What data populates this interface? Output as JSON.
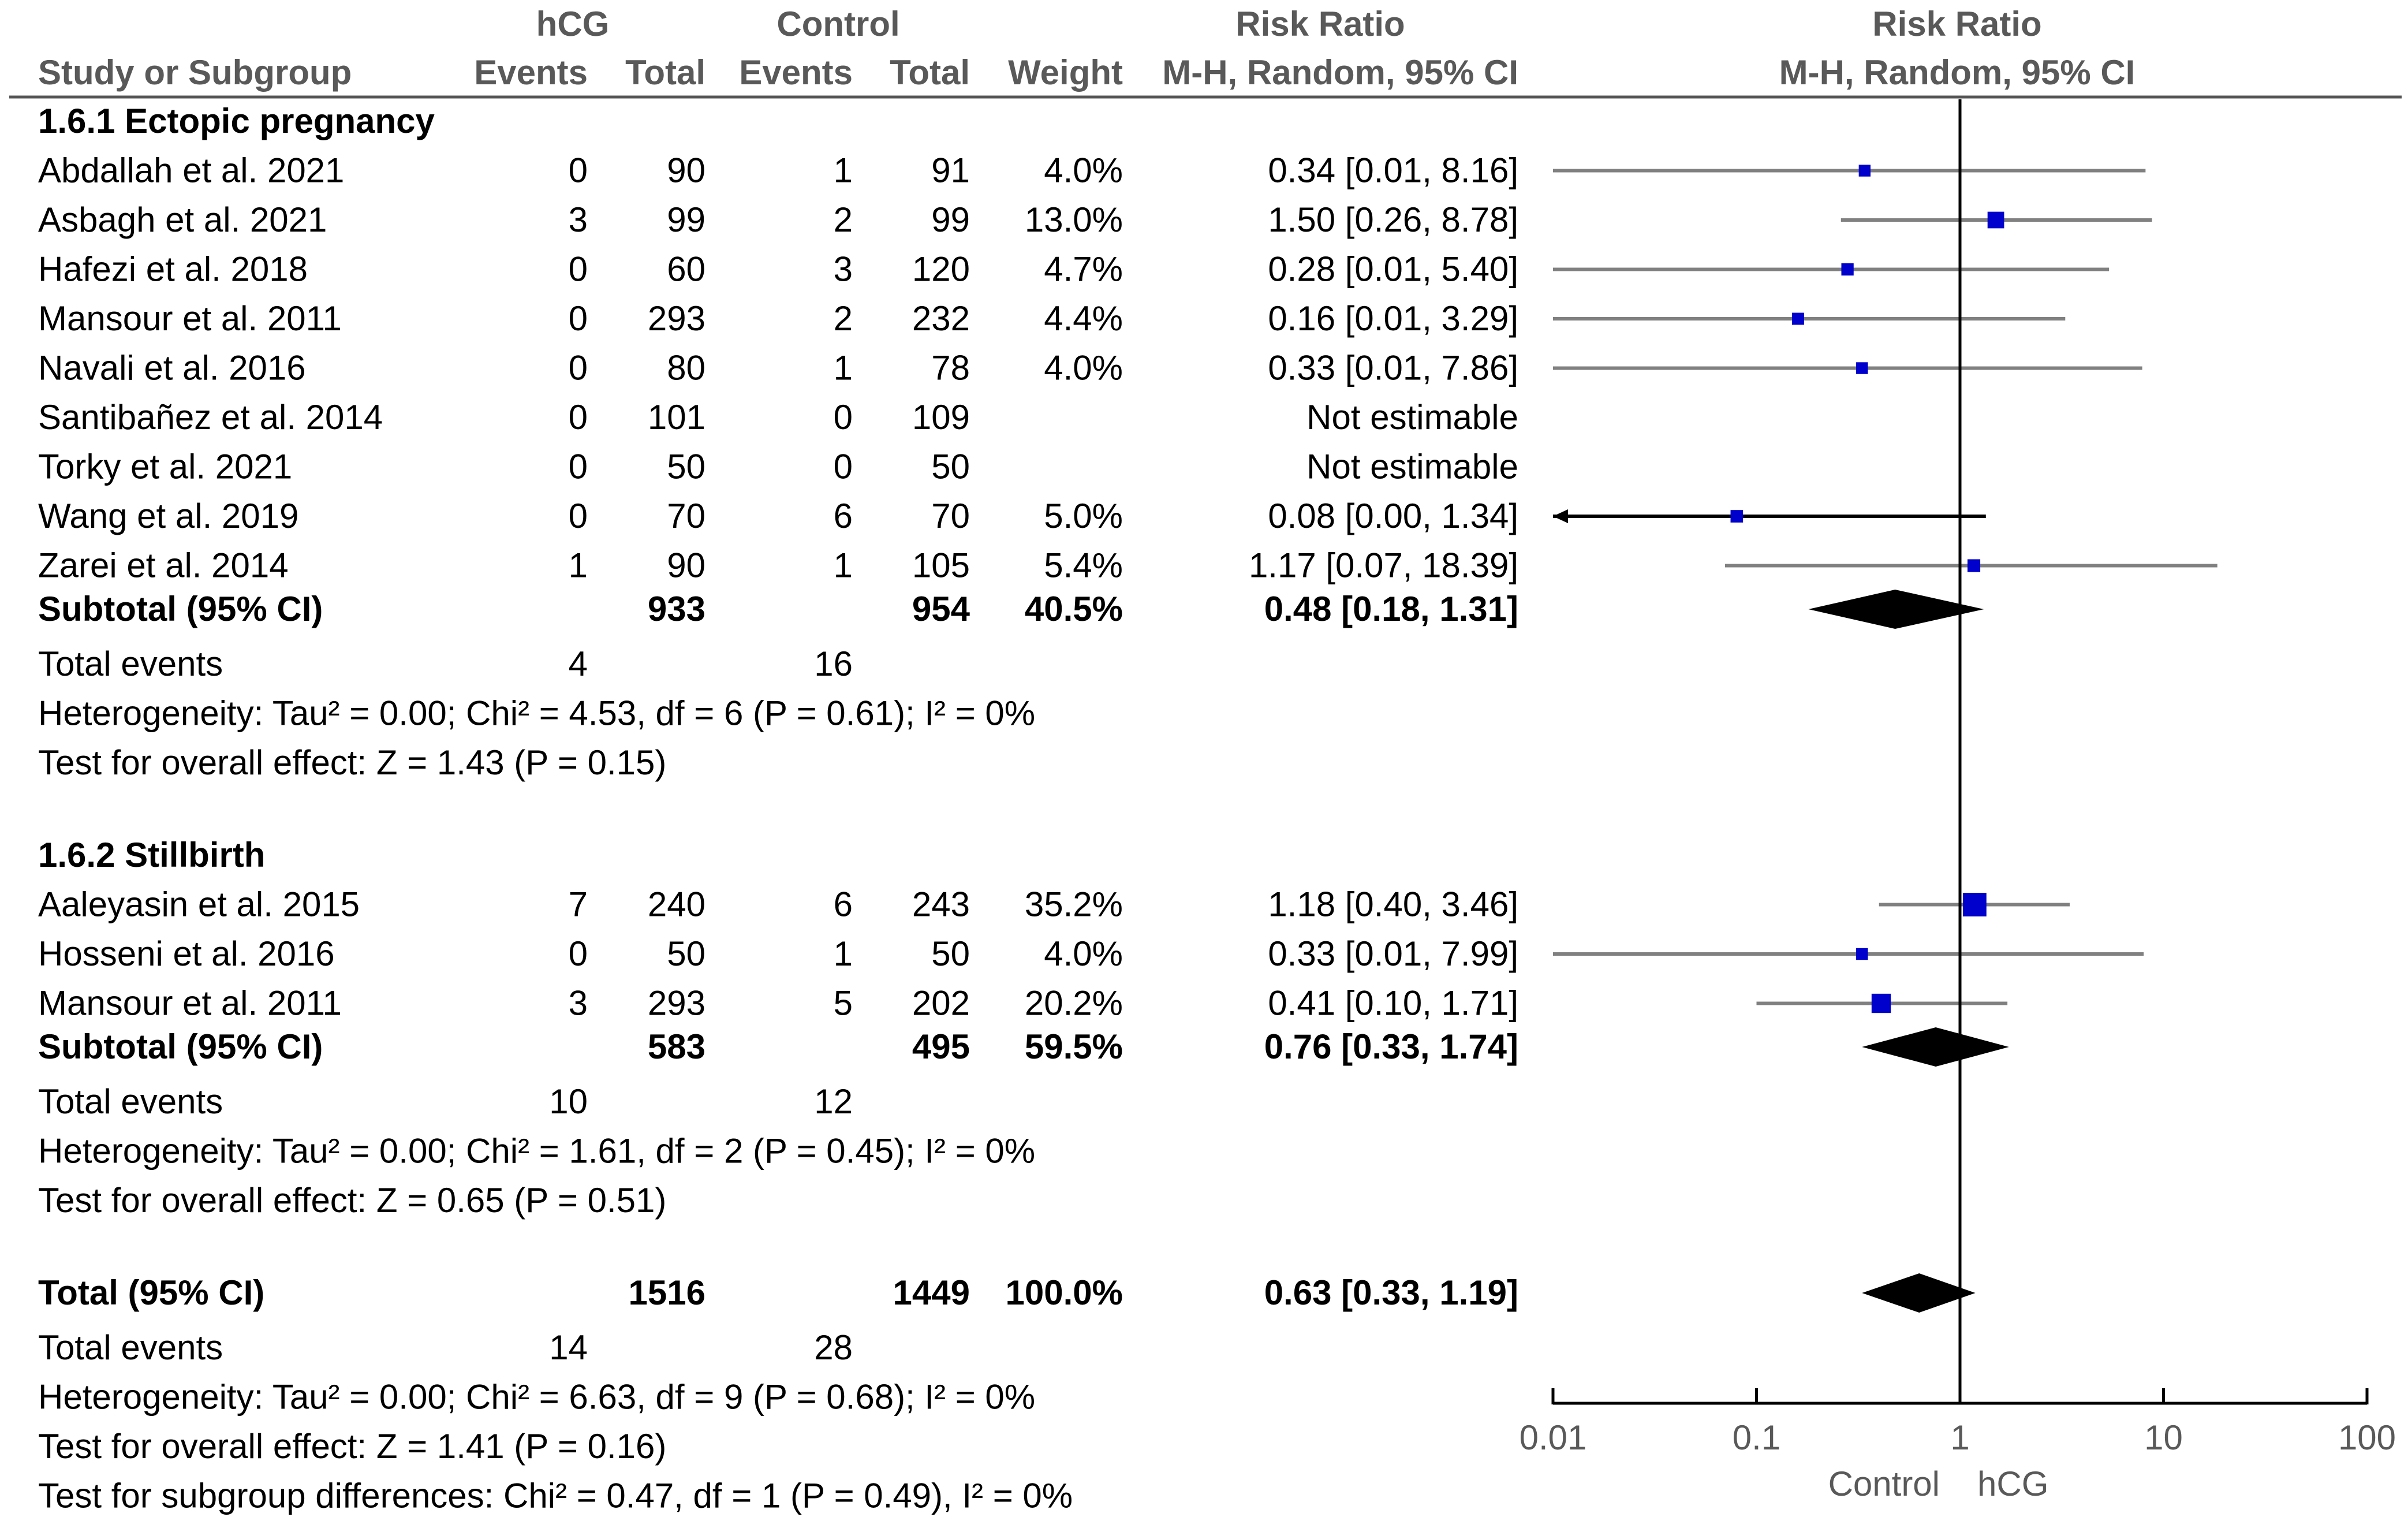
{
  "header": {
    "study_col": "Study or Subgroup",
    "exp_group": "hCG",
    "ctrl_group": "Control",
    "events": "Events",
    "total": "Total",
    "weight": "Weight",
    "rr_title": "Risk Ratio",
    "rr_method": "M-H, Random, 95% CI",
    "plot_title": "Risk Ratio",
    "plot_method": "M-H, Random, 95% CI"
  },
  "axis": {
    "ticks": [
      0.01,
      0.1,
      1,
      10,
      100
    ],
    "tick_labels": [
      "0.01",
      "0.1",
      "1",
      "10",
      "100"
    ],
    "left_label": "Control",
    "right_label": "hCG",
    "scale": "log",
    "range": [
      0.01,
      100
    ]
  },
  "colors": {
    "marker": "#0000cd",
    "ci_line": "#808080",
    "diamond": "#000000"
  },
  "chart_data": {
    "type": "forest",
    "scale": "log",
    "xlim": [
      0.01,
      100
    ],
    "subgroups": [
      {
        "title": "1.6.1 Ectopic pregnancy",
        "studies": [
          {
            "name": "Abdallah et al. 2021",
            "e_events": "0",
            "e_total": "90",
            "c_events": "1",
            "c_total": "91",
            "weight": "4.0%",
            "ci_text": "0.34 [0.01, 8.16]",
            "rr": 0.34,
            "lo": 0.01,
            "hi": 8.16,
            "w": 4.0
          },
          {
            "name": "Asbagh et al. 2021",
            "e_events": "3",
            "e_total": "99",
            "c_events": "2",
            "c_total": "99",
            "weight": "13.0%",
            "ci_text": "1.50 [0.26, 8.78]",
            "rr": 1.5,
            "lo": 0.26,
            "hi": 8.78,
            "w": 13.0
          },
          {
            "name": "Hafezi et al. 2018",
            "e_events": "0",
            "e_total": "60",
            "c_events": "3",
            "c_total": "120",
            "weight": "4.7%",
            "ci_text": "0.28 [0.01, 5.40]",
            "rr": 0.28,
            "lo": 0.01,
            "hi": 5.4,
            "w": 4.7
          },
          {
            "name": "Mansour et al. 2011",
            "e_events": "0",
            "e_total": "293",
            "c_events": "2",
            "c_total": "232",
            "weight": "4.4%",
            "ci_text": "0.16 [0.01, 3.29]",
            "rr": 0.16,
            "lo": 0.01,
            "hi": 3.29,
            "w": 4.4
          },
          {
            "name": "Navali et al. 2016",
            "e_events": "0",
            "e_total": "80",
            "c_events": "1",
            "c_total": "78",
            "weight": "4.0%",
            "ci_text": "0.33 [0.01, 7.86]",
            "rr": 0.33,
            "lo": 0.01,
            "hi": 7.86,
            "w": 4.0
          },
          {
            "name": "Santibañez et al. 2014",
            "e_events": "0",
            "e_total": "101",
            "c_events": "0",
            "c_total": "109",
            "weight": "",
            "ci_text": "Not estimable",
            "rr": null,
            "lo": null,
            "hi": null,
            "w": null
          },
          {
            "name": "Torky et al. 2021",
            "e_events": "0",
            "e_total": "50",
            "c_events": "0",
            "c_total": "50",
            "weight": "",
            "ci_text": "Not estimable",
            "rr": null,
            "lo": null,
            "hi": null,
            "w": null
          },
          {
            "name": "Wang et al. 2019",
            "e_events": "0",
            "e_total": "70",
            "c_events": "6",
            "c_total": "70",
            "weight": "5.0%",
            "ci_text": "0.08 [0.00, 1.34]",
            "rr": 0.08,
            "lo": 0.0,
            "hi": 1.34,
            "w": 5.0
          },
          {
            "name": "Zarei et al. 2014",
            "e_events": "1",
            "e_total": "90",
            "c_events": "1",
            "c_total": "105",
            "weight": "5.4%",
            "ci_text": "1.17 [0.07, 18.39]",
            "rr": 1.17,
            "lo": 0.07,
            "hi": 18.39,
            "w": 5.4
          }
        ],
        "subtotal": {
          "label": "Subtotal (95% CI)",
          "e_total": "933",
          "c_total": "954",
          "weight": "40.5%",
          "ci_text": "0.48 [0.18, 1.31]",
          "rr": 0.48,
          "lo": 0.18,
          "hi": 1.31
        },
        "total_events": {
          "label": "Total events",
          "e": "4",
          "c": "16"
        },
        "heterogeneity": "Heterogeneity: Tau² = 0.00; Chi² = 4.53, df = 6 (P = 0.61); I² = 0%",
        "overall": "Test for overall effect: Z = 1.43 (P = 0.15)"
      },
      {
        "title": "1.6.2 Stillbirth",
        "studies": [
          {
            "name": "Aaleyasin et al. 2015",
            "e_events": "7",
            "e_total": "240",
            "c_events": "6",
            "c_total": "243",
            "weight": "35.2%",
            "ci_text": "1.18 [0.40, 3.46]",
            "rr": 1.18,
            "lo": 0.4,
            "hi": 3.46,
            "w": 35.2
          },
          {
            "name": "Hosseni et al. 2016",
            "e_events": "0",
            "e_total": "50",
            "c_events": "1",
            "c_total": "50",
            "weight": "4.0%",
            "ci_text": "0.33 [0.01, 7.99]",
            "rr": 0.33,
            "lo": 0.01,
            "hi": 7.99,
            "w": 4.0
          },
          {
            "name": "Mansour et al. 2011",
            "e_events": "3",
            "e_total": "293",
            "c_events": "5",
            "c_total": "202",
            "weight": "20.2%",
            "ci_text": "0.41 [0.10, 1.71]",
            "rr": 0.41,
            "lo": 0.1,
            "hi": 1.71,
            "w": 20.2
          }
        ],
        "subtotal": {
          "label": "Subtotal (95% CI)",
          "e_total": "583",
          "c_total": "495",
          "weight": "59.5%",
          "ci_text": "0.76 [0.33, 1.74]",
          "rr": 0.76,
          "lo": 0.33,
          "hi": 1.74
        },
        "total_events": {
          "label": "Total events",
          "e": "10",
          "c": "12"
        },
        "heterogeneity": "Heterogeneity: Tau² = 0.00; Chi² = 1.61, df = 2 (P = 0.45); I² = 0%",
        "overall": "Test for overall effect: Z = 0.65 (P = 0.51)"
      }
    ],
    "total": {
      "label": "Total (95% CI)",
      "e_total": "1516",
      "c_total": "1449",
      "weight": "100.0%",
      "ci_text": "0.63 [0.33, 1.19]",
      "rr": 0.63,
      "lo": 0.33,
      "hi": 1.19
    },
    "total_events": {
      "label": "Total events",
      "e": "14",
      "c": "28"
    },
    "heterogeneity": "Heterogeneity: Tau² = 0.00; Chi² = 6.63, df = 9 (P = 0.68); I² = 0%",
    "overall": "Test for overall effect: Z = 1.41 (P = 0.16)",
    "subgroup_diff": "Test for subgroup differences: Chi² = 0.47, df = 1 (P = 0.49), I² = 0%"
  }
}
